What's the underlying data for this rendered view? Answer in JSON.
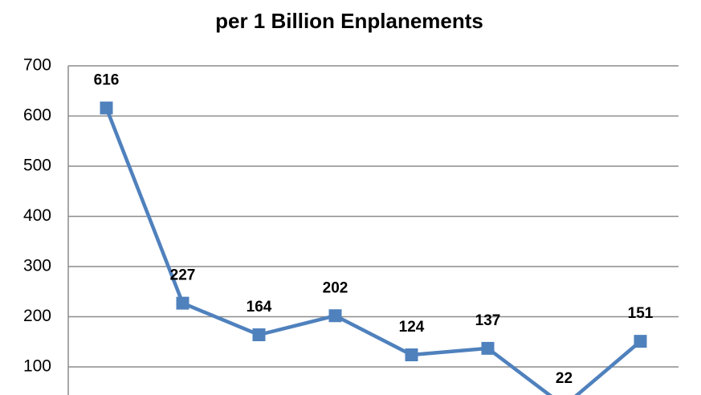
{
  "chart_data": {
    "type": "line",
    "title": "per 1 Billion Enplanements",
    "categories": [
      null,
      null,
      null,
      null,
      null,
      null,
      null,
      null
    ],
    "series": [
      {
        "name": null,
        "color": "#4f81bd",
        "values": [
          616,
          227,
          164,
          202,
          124,
          137,
          22,
          151
        ]
      }
    ],
    "ylim": [
      0,
      700
    ],
    "yticks": [
      100,
      200,
      300,
      400,
      500,
      600,
      700
    ],
    "grid": true,
    "data_labels": true
  }
}
